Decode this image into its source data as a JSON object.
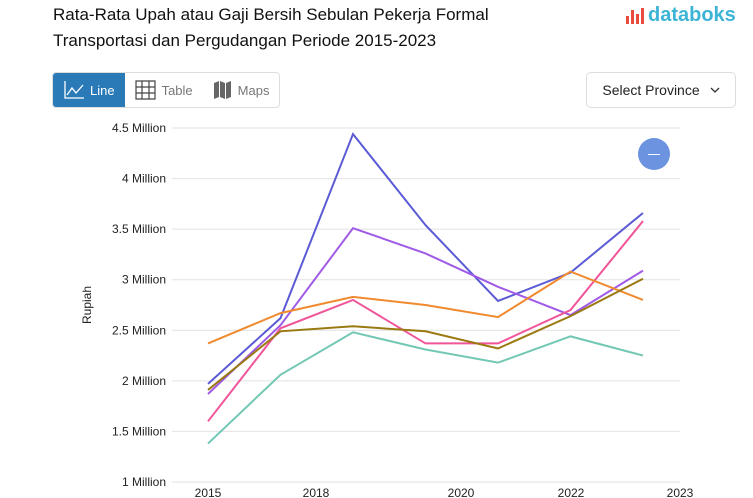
{
  "header": {
    "title_line1": "Rata-Rata Upah atau Gaji Bersih Sebulan Pekerja Formal",
    "title_line2": "Transportasi dan Pergudangan Periode 2015-2023",
    "logo": "databoks"
  },
  "tabs": [
    {
      "label": "Line",
      "icon": "line-chart-icon",
      "active": true
    },
    {
      "label": "Table",
      "icon": "table-grid-icon",
      "active": false
    },
    {
      "label": "Maps",
      "icon": "map-icon",
      "active": false
    }
  ],
  "province_select": {
    "label": "Select Province",
    "icon": "chevron-down-icon"
  },
  "chart_data": {
    "type": "line",
    "title": "",
    "ylabel": "Rupiah",
    "xlabel": "",
    "ylim": [
      1000000,
      4500000
    ],
    "yticks": [
      {
        "v": 1000000,
        "label": "1 Million"
      },
      {
        "v": 1500000,
        "label": "1.5 Million"
      },
      {
        "v": 2000000,
        "label": "2 Million"
      },
      {
        "v": 2500000,
        "label": "2.5 Million"
      },
      {
        "v": 3000000,
        "label": "3 Million"
      },
      {
        "v": 3500000,
        "label": "3.5 Million"
      },
      {
        "v": 4000000,
        "label": "4 Million"
      },
      {
        "v": 4500000,
        "label": "4.5 Million"
      }
    ],
    "xtick_labels": [
      "2015",
      "2018",
      "2020",
      "2022",
      "2023"
    ],
    "grid": true,
    "series": [
      {
        "color": "#5b5bd6",
        "values": [
          1970000,
          2620000,
          4440000,
          3540000,
          2790000,
          3070000,
          3660000
        ]
      },
      {
        "color": "#a05be6",
        "values": [
          1870000,
          2550000,
          3510000,
          3260000,
          2930000,
          2650000,
          3090000
        ]
      },
      {
        "color": "#f0559a",
        "values": [
          1600000,
          2520000,
          2800000,
          2370000,
          2370000,
          2700000,
          3580000
        ]
      },
      {
        "color": "#f08a2e",
        "values": [
          2370000,
          2670000,
          2830000,
          2750000,
          2630000,
          3080000,
          2800000
        ]
      },
      {
        "color": "#9a7a10",
        "values": [
          1910000,
          2490000,
          2540000,
          2490000,
          2320000,
          2640000,
          3010000
        ]
      },
      {
        "color": "#72c8b4",
        "values": [
          1380000,
          2060000,
          2480000,
          2310000,
          2180000,
          2440000,
          2250000
        ]
      }
    ]
  }
}
